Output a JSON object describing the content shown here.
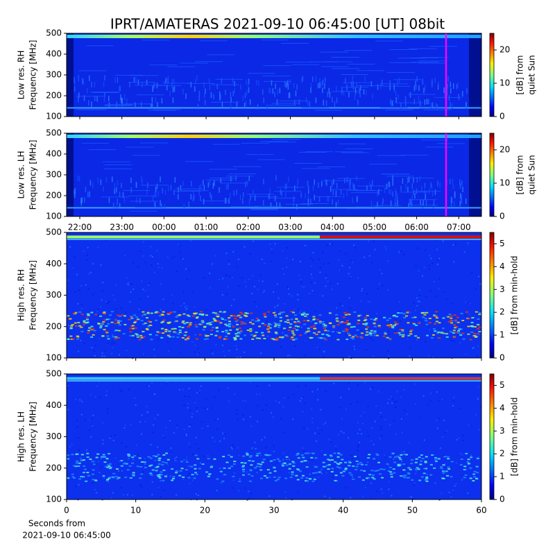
{
  "title": "IPRT/AMATERAS 2021-09-10 06:45:00 [UT]   08bit",
  "chart_data": [
    {
      "type": "heatmap",
      "ylabel": [
        "Low res. RH",
        "Frequency [MHz]"
      ],
      "ylim": [
        100,
        500
      ],
      "yticks": [
        100,
        200,
        300,
        400,
        500
      ],
      "colorbar_label": [
        "[dB] from",
        "quiet Sun"
      ],
      "clim": [
        0,
        25
      ],
      "cticks": [
        0,
        10,
        20
      ]
    },
    {
      "type": "heatmap",
      "ylabel": [
        "Low res. LH",
        "Frequency [MHz]"
      ],
      "ylim": [
        100,
        500
      ],
      "yticks": [
        100,
        200,
        300,
        400,
        500
      ],
      "colorbar_label": [
        "[dB] from",
        "quiet Sun"
      ],
      "clim": [
        0,
        25
      ],
      "cticks": [
        0,
        10,
        20
      ],
      "xticks": [
        "22:00",
        "23:00",
        "00:00",
        "01:00",
        "02:00",
        "03:00",
        "04:00",
        "05:00",
        "06:00",
        "07:00"
      ]
    },
    {
      "type": "heatmap",
      "ylabel": [
        "High res. RH",
        "Frequency [MHz]"
      ],
      "ylim": [
        100,
        500
      ],
      "yticks": [
        100,
        200,
        300,
        400,
        500
      ],
      "colorbar_label": [
        "[dB] from min-hold"
      ],
      "clim": [
        0,
        5.5
      ],
      "cticks": [
        0,
        1,
        2,
        3,
        4,
        5
      ]
    },
    {
      "type": "heatmap",
      "ylabel": [
        "High res. LH",
        "Frequency [MHz]"
      ],
      "ylim": [
        100,
        500
      ],
      "yticks": [
        100,
        200,
        300,
        400,
        500
      ],
      "colorbar_label": [
        "[dB] from min-hold"
      ],
      "clim": [
        0,
        5.5
      ],
      "cticks": [
        0,
        1,
        2,
        3,
        4,
        5
      ],
      "xlabel": [
        "Seconds from",
        "2021-09-10 06:45:00"
      ],
      "xlim": [
        0,
        60
      ],
      "xticks": [
        0,
        10,
        20,
        30,
        40,
        50,
        60
      ]
    }
  ]
}
